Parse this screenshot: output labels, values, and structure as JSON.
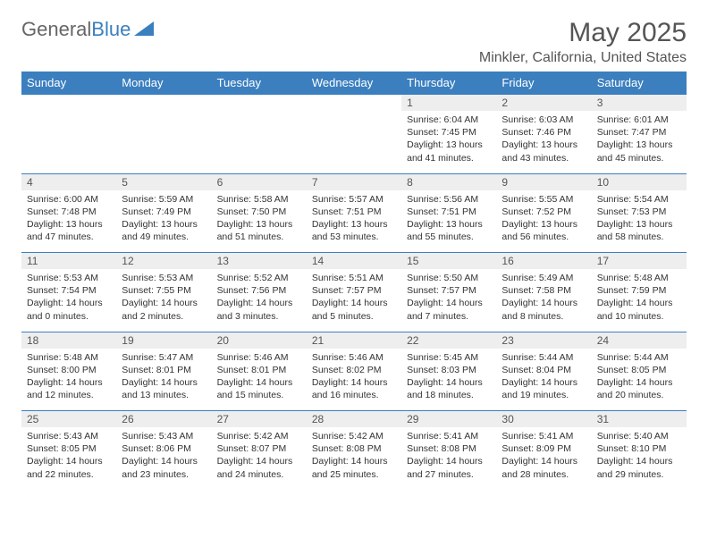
{
  "logo": {
    "text1": "General",
    "text2": "Blue"
  },
  "title": "May 2025",
  "location": "Minkler, California, United States",
  "columns": [
    "Sunday",
    "Monday",
    "Tuesday",
    "Wednesday",
    "Thursday",
    "Friday",
    "Saturday"
  ],
  "colors": {
    "header_bg": "#3b7fbf",
    "header_text": "#ffffff",
    "daynum_bg": "#eeeeee",
    "text": "#333333",
    "logo_gray": "#666666",
    "logo_blue": "#3b7fbf"
  },
  "weeks": [
    [
      null,
      null,
      null,
      null,
      {
        "n": "1",
        "sr": "6:04 AM",
        "ss": "7:45 PM",
        "dl": "13 hours and 41 minutes."
      },
      {
        "n": "2",
        "sr": "6:03 AM",
        "ss": "7:46 PM",
        "dl": "13 hours and 43 minutes."
      },
      {
        "n": "3",
        "sr": "6:01 AM",
        "ss": "7:47 PM",
        "dl": "13 hours and 45 minutes."
      }
    ],
    [
      {
        "n": "4",
        "sr": "6:00 AM",
        "ss": "7:48 PM",
        "dl": "13 hours and 47 minutes."
      },
      {
        "n": "5",
        "sr": "5:59 AM",
        "ss": "7:49 PM",
        "dl": "13 hours and 49 minutes."
      },
      {
        "n": "6",
        "sr": "5:58 AM",
        "ss": "7:50 PM",
        "dl": "13 hours and 51 minutes."
      },
      {
        "n": "7",
        "sr": "5:57 AM",
        "ss": "7:51 PM",
        "dl": "13 hours and 53 minutes."
      },
      {
        "n": "8",
        "sr": "5:56 AM",
        "ss": "7:51 PM",
        "dl": "13 hours and 55 minutes."
      },
      {
        "n": "9",
        "sr": "5:55 AM",
        "ss": "7:52 PM",
        "dl": "13 hours and 56 minutes."
      },
      {
        "n": "10",
        "sr": "5:54 AM",
        "ss": "7:53 PM",
        "dl": "13 hours and 58 minutes."
      }
    ],
    [
      {
        "n": "11",
        "sr": "5:53 AM",
        "ss": "7:54 PM",
        "dl": "14 hours and 0 minutes."
      },
      {
        "n": "12",
        "sr": "5:53 AM",
        "ss": "7:55 PM",
        "dl": "14 hours and 2 minutes."
      },
      {
        "n": "13",
        "sr": "5:52 AM",
        "ss": "7:56 PM",
        "dl": "14 hours and 3 minutes."
      },
      {
        "n": "14",
        "sr": "5:51 AM",
        "ss": "7:57 PM",
        "dl": "14 hours and 5 minutes."
      },
      {
        "n": "15",
        "sr": "5:50 AM",
        "ss": "7:57 PM",
        "dl": "14 hours and 7 minutes."
      },
      {
        "n": "16",
        "sr": "5:49 AM",
        "ss": "7:58 PM",
        "dl": "14 hours and 8 minutes."
      },
      {
        "n": "17",
        "sr": "5:48 AM",
        "ss": "7:59 PM",
        "dl": "14 hours and 10 minutes."
      }
    ],
    [
      {
        "n": "18",
        "sr": "5:48 AM",
        "ss": "8:00 PM",
        "dl": "14 hours and 12 minutes."
      },
      {
        "n": "19",
        "sr": "5:47 AM",
        "ss": "8:01 PM",
        "dl": "14 hours and 13 minutes."
      },
      {
        "n": "20",
        "sr": "5:46 AM",
        "ss": "8:01 PM",
        "dl": "14 hours and 15 minutes."
      },
      {
        "n": "21",
        "sr": "5:46 AM",
        "ss": "8:02 PM",
        "dl": "14 hours and 16 minutes."
      },
      {
        "n": "22",
        "sr": "5:45 AM",
        "ss": "8:03 PM",
        "dl": "14 hours and 18 minutes."
      },
      {
        "n": "23",
        "sr": "5:44 AM",
        "ss": "8:04 PM",
        "dl": "14 hours and 19 minutes."
      },
      {
        "n": "24",
        "sr": "5:44 AM",
        "ss": "8:05 PM",
        "dl": "14 hours and 20 minutes."
      }
    ],
    [
      {
        "n": "25",
        "sr": "5:43 AM",
        "ss": "8:05 PM",
        "dl": "14 hours and 22 minutes."
      },
      {
        "n": "26",
        "sr": "5:43 AM",
        "ss": "8:06 PM",
        "dl": "14 hours and 23 minutes."
      },
      {
        "n": "27",
        "sr": "5:42 AM",
        "ss": "8:07 PM",
        "dl": "14 hours and 24 minutes."
      },
      {
        "n": "28",
        "sr": "5:42 AM",
        "ss": "8:08 PM",
        "dl": "14 hours and 25 minutes."
      },
      {
        "n": "29",
        "sr": "5:41 AM",
        "ss": "8:08 PM",
        "dl": "14 hours and 27 minutes."
      },
      {
        "n": "30",
        "sr": "5:41 AM",
        "ss": "8:09 PM",
        "dl": "14 hours and 28 minutes."
      },
      {
        "n": "31",
        "sr": "5:40 AM",
        "ss": "8:10 PM",
        "dl": "14 hours and 29 minutes."
      }
    ]
  ],
  "labels": {
    "sunrise": "Sunrise:",
    "sunset": "Sunset:",
    "daylight": "Daylight:"
  }
}
